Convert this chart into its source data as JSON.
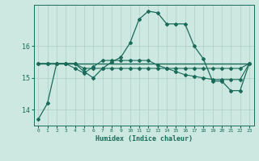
{
  "xlabel": "Humidex (Indice chaleur)",
  "background_color": "#cce8e0",
  "grid_color": "#aacfc8",
  "line_color": "#1a6b5a",
  "xlim": [
    -0.5,
    23.5
  ],
  "ylim": [
    13.5,
    17.3
  ],
  "yticks": [
    14,
    15,
    16
  ],
  "xticks": [
    0,
    1,
    2,
    3,
    4,
    5,
    6,
    7,
    8,
    9,
    10,
    11,
    12,
    13,
    14,
    15,
    16,
    17,
    18,
    19,
    20,
    21,
    22,
    23
  ],
  "series1": [
    13.7,
    14.2,
    15.45,
    15.45,
    15.45,
    15.2,
    15.0,
    15.3,
    15.5,
    15.65,
    16.1,
    16.85,
    17.1,
    17.05,
    16.7,
    16.7,
    16.7,
    16.0,
    15.6,
    14.9,
    14.9,
    14.6,
    14.6,
    15.45
  ],
  "series2": [
    15.45,
    15.45,
    15.45,
    15.45,
    15.3,
    15.15,
    15.35,
    15.55,
    15.55,
    15.55,
    15.55,
    15.55,
    15.55,
    15.4,
    15.3,
    15.2,
    15.1,
    15.05,
    15.0,
    14.95,
    14.95,
    14.95,
    14.95,
    15.45
  ],
  "series3": [
    15.45,
    15.45,
    15.45,
    15.45,
    15.45,
    15.45,
    15.45,
    15.45,
    15.45,
    15.45,
    15.45,
    15.45,
    15.45,
    15.45,
    15.45,
    15.45,
    15.45,
    15.45,
    15.45,
    15.45,
    15.45,
    15.45,
    15.45,
    15.45
  ],
  "series4": [
    15.45,
    15.45,
    15.45,
    15.45,
    15.45,
    15.3,
    15.3,
    15.3,
    15.3,
    15.3,
    15.3,
    15.3,
    15.3,
    15.3,
    15.3,
    15.3,
    15.3,
    15.3,
    15.3,
    15.3,
    15.3,
    15.3,
    15.3,
    15.45
  ]
}
